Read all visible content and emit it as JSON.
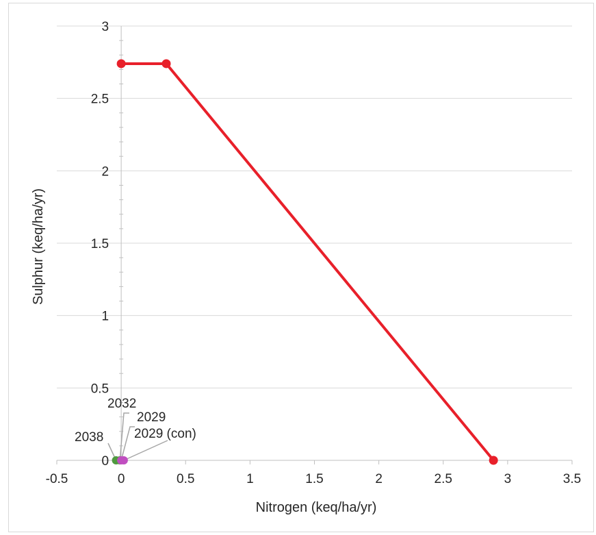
{
  "chart_data": {
    "type": "scatter",
    "title": "",
    "xlabel": "Nitrogen (keq/ha/yr)",
    "ylabel": "Sulphur  (keq/ha/yr)",
    "xlim": [
      -0.5,
      3.5
    ],
    "ylim": [
      0,
      3
    ],
    "x_ticks": [
      "-0.5",
      "0",
      "0.5",
      "1",
      "1.5",
      "2",
      "2.5",
      "3",
      "3.5"
    ],
    "y_ticks": [
      "0",
      "0.5",
      "1",
      "1.5",
      "2",
      "2.5",
      "3"
    ],
    "grid": "horizontal",
    "series": [
      {
        "color": "#e8202a",
        "mode": "line+markers",
        "points": [
          {
            "x": 0,
            "y": 2.74
          },
          {
            "x": 0.35,
            "y": 2.74
          },
          {
            "x": 2.89,
            "y": 0
          }
        ]
      }
    ],
    "annotations": [
      {
        "label": "2038",
        "x": -0.04,
        "y": 0,
        "color": "#4f9a3f"
      },
      {
        "label": "2032",
        "x": -0.01,
        "y": 0,
        "color": "#4f9a3f"
      },
      {
        "label": "2029",
        "x": 0.0,
        "y": 0,
        "color": "#c04ec0"
      },
      {
        "label": "2029 (con)",
        "x": 0.02,
        "y": 0,
        "color": "#c04ec0"
      }
    ]
  }
}
